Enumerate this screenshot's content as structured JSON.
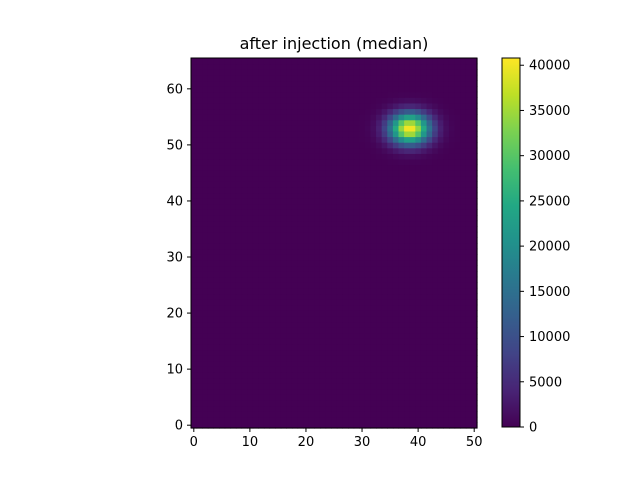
{
  "chart_data": {
    "type": "heatmap",
    "title": "after injection (median)",
    "xlabel": "",
    "ylabel": "",
    "xlim": [
      -0.5,
      50.5
    ],
    "ylim": [
      -0.5,
      65.5
    ],
    "grid_size": {
      "cols": 51,
      "rows": 66
    },
    "x_ticks": [
      0,
      10,
      20,
      30,
      40,
      50
    ],
    "y_ticks": [
      0,
      10,
      20,
      30,
      40,
      50,
      60
    ],
    "colormap": "viridis",
    "color_range": [
      0,
      40800
    ],
    "colorbar_ticks": [
      0,
      5000,
      10000,
      15000,
      20000,
      25000,
      30000,
      35000,
      40000
    ],
    "background_value": 0,
    "peak": {
      "x": 38.5,
      "y": 53,
      "amplitude": 40800,
      "sigma_x": 2.5,
      "sigma_y": 1.9
    },
    "grid": false,
    "legend": "colorbar-right"
  }
}
